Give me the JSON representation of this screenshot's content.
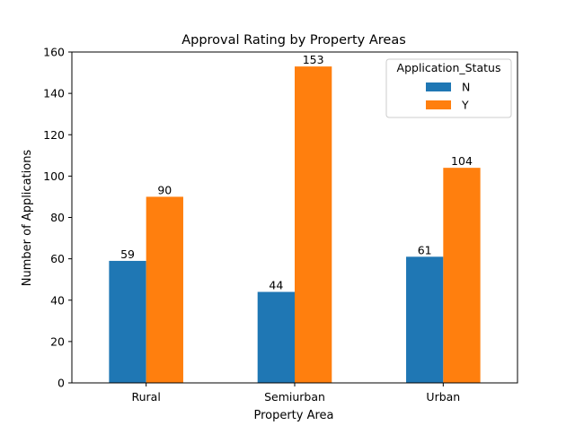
{
  "chart_data": {
    "type": "bar",
    "title": "Approval Rating by Property Areas",
    "xlabel": "Property Area",
    "ylabel": "Number of Applications",
    "categories": [
      "Rural",
      "Semiurban",
      "Urban"
    ],
    "series": [
      {
        "name": "N",
        "values": [
          59,
          44,
          61
        ],
        "color": "#1f77b4"
      },
      {
        "name": "Y",
        "values": [
          90,
          153,
          104
        ],
        "color": "#ff7f0e"
      }
    ],
    "ylim": [
      0,
      160
    ],
    "yticks": [
      0,
      20,
      40,
      60,
      80,
      100,
      120,
      140,
      160
    ],
    "grid": false,
    "legend": {
      "title": "Application_Status",
      "placement": "top-right"
    },
    "data_labels": true
  }
}
